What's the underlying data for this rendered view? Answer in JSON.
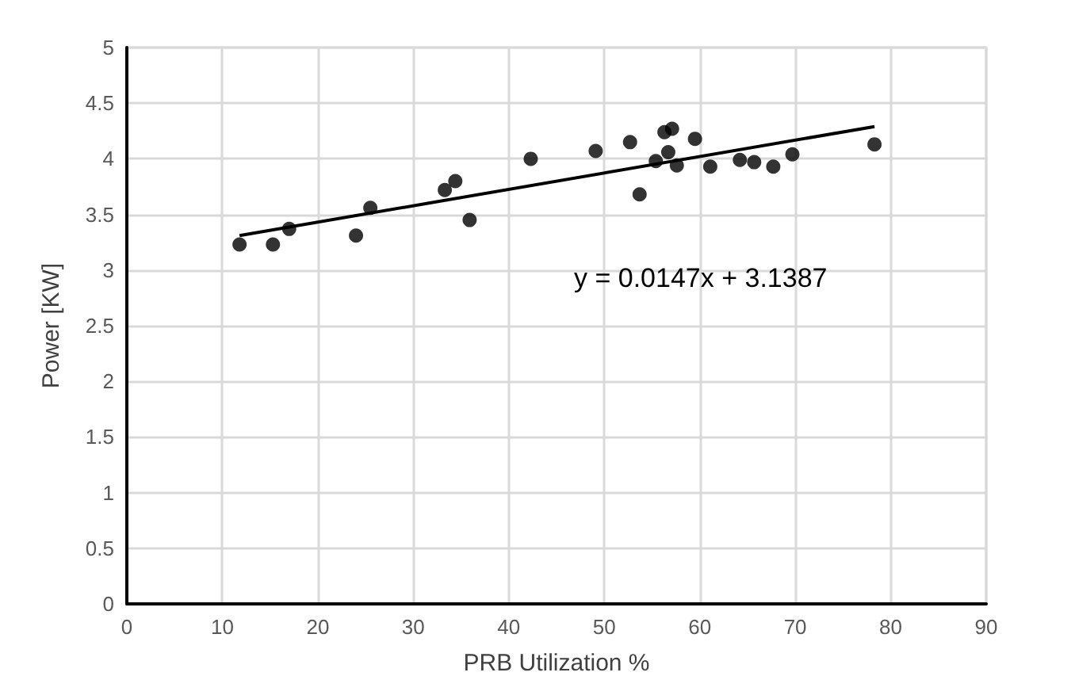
{
  "chart_data": {
    "type": "scatter",
    "xlabel": "PRB Utilization %",
    "ylabel": "Power [KW]",
    "xlim": [
      0,
      90
    ],
    "xticks": [
      0,
      10,
      20,
      30,
      40,
      50,
      60,
      70,
      80,
      90
    ],
    "ylim": [
      0,
      5
    ],
    "yticks": [
      0,
      0.5,
      1,
      1.5,
      2,
      2.5,
      3,
      3.5,
      4,
      4.5,
      5
    ],
    "grid": true,
    "series": [
      {
        "marker": "circle",
        "color": "#000000",
        "x": [
          11.8,
          15.3,
          17,
          24,
          25.5,
          33.3,
          34.4,
          35.9,
          42.3,
          49.1,
          52.7,
          53.7,
          55.4,
          56.3,
          56.7,
          57.1,
          57.6,
          59.5,
          61.1,
          64.2,
          65.7,
          67.7,
          69.7,
          78.3
        ],
        "values": [
          3.23,
          3.23,
          3.37,
          3.31,
          3.56,
          3.72,
          3.8,
          3.45,
          4.0,
          4.07,
          4.15,
          3.68,
          3.98,
          4.24,
          4.06,
          4.27,
          3.94,
          4.18,
          3.93,
          3.99,
          3.97,
          3.93,
          4.04,
          4.13
        ]
      },
      {
        "type": "line",
        "marker": "none",
        "color": "#000000",
        "x": [
          11.8,
          78.3
        ],
        "values": [
          3.31,
          4.29
        ]
      }
    ],
    "annotations": [
      "y = 0.0147x + 3.1387"
    ]
  }
}
